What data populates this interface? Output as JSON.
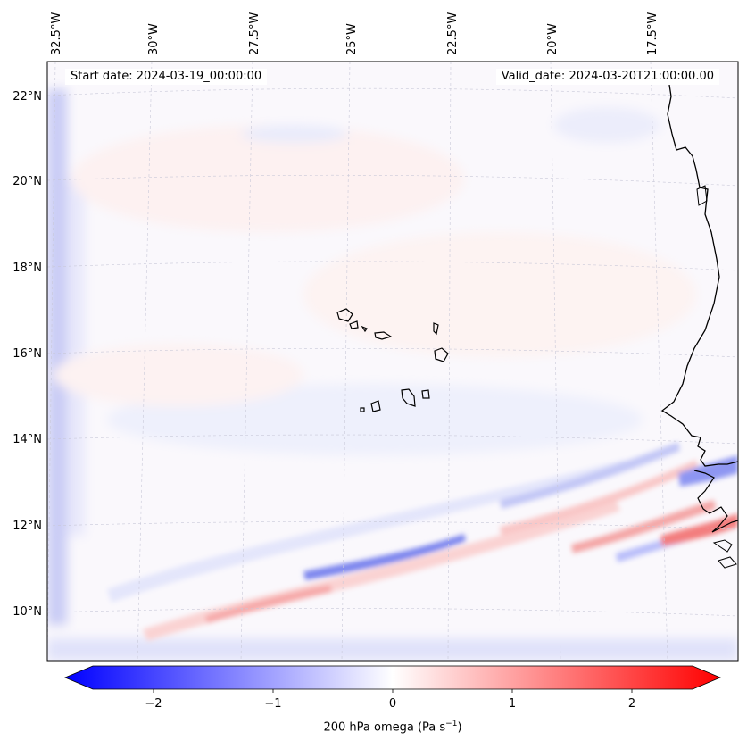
{
  "header": {
    "start_date": "Start date: 2024-03-19_00:00:00",
    "valid_date": "Valid_date: 2024-03-20T21:00:00.00"
  },
  "map": {
    "lon_labels": [
      "32.5°W",
      "30°W",
      "27.5°W",
      "25°W",
      "22.5°W",
      "20°W",
      "17.5°W"
    ],
    "lat_labels": [
      "22°N",
      "20°N",
      "18°N",
      "16°N",
      "14°N",
      "12°N",
      "10°N"
    ],
    "variable": "200 hPa omega",
    "colormap": "bwr"
  },
  "colorbar": {
    "label_main": "200 hPa omega (Pa s",
    "label_exp": "−1",
    "label_close": ")",
    "ticks": [
      "−2",
      "−1",
      "0",
      "1",
      "2"
    ],
    "range": [
      -2.6,
      2.6
    ],
    "color_low": "#0000ff",
    "color_mid": "#ffffff",
    "color_high": "#ff0000"
  }
}
